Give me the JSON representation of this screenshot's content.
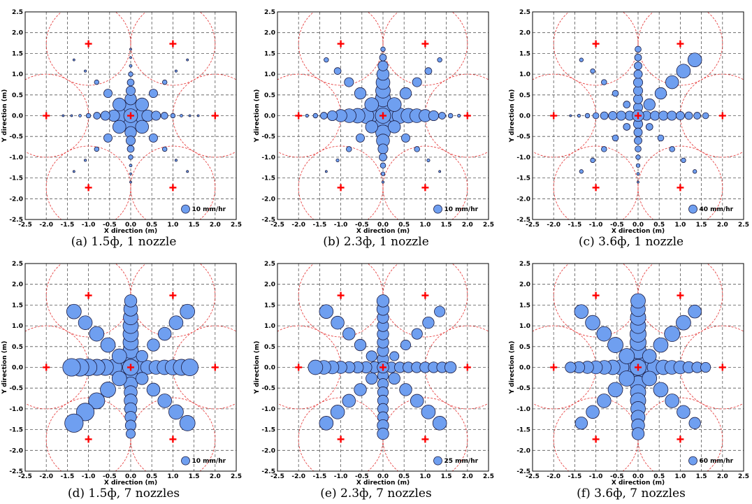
{
  "colors": {
    "bubble_fill": "#6f9ff0",
    "bubble_stroke": "#1a1a40",
    "nozzle_marker": "#ff0000",
    "coverage_circle": "#e43030",
    "grid": "#555555"
  },
  "icons": {
    "nozzle_marker": "red-plus-marker"
  },
  "chart_data": [
    {
      "type": "scatter",
      "caption": "(a) 1.5ф, 1 nozzle",
      "xlabel": "X direction (m)",
      "ylabel": "Y direction (m)",
      "xlim": [
        -2.5,
        2.5
      ],
      "ylim": [
        -2.5,
        2.5
      ],
      "ticks": [
        "-2.5",
        "-2.0",
        "-1.5",
        "-1.0",
        "-0.5",
        "0.0",
        "0.5",
        "1.0",
        "1.5",
        "2.0",
        "2.5"
      ],
      "grid": true,
      "legend": {
        "label": "10 mm/hr",
        "position": "bottom-right"
      },
      "arms": {
        "east": [
          0.9,
          0.75,
          0.6,
          0.45,
          0.3,
          0.18,
          0.1,
          0.06
        ],
        "west": [
          0.9,
          0.75,
          0.6,
          0.45,
          0.3,
          0.18,
          0.1,
          0.06
        ],
        "north": [
          0.9,
          0.75,
          0.6,
          0.45,
          0.3,
          0.18,
          0.1,
          0.06
        ],
        "south": [
          0.9,
          0.75,
          0.6,
          0.45,
          0.3,
          0.18,
          0.1,
          0.06
        ],
        "ne": [
          0.85,
          0.55,
          0.3,
          0.15,
          0.08
        ],
        "nw": [
          0.85,
          0.55,
          0.3,
          0.15,
          0.08
        ],
        "se": [
          0.85,
          0.55,
          0.3,
          0.15,
          0.08
        ],
        "sw": [
          0.85,
          0.55,
          0.3,
          0.15,
          0.08
        ]
      }
    },
    {
      "type": "scatter",
      "caption": "(b) 2.3ф, 1 nozzle",
      "xlabel": "X direction (m)",
      "ylabel": "Y direction (m)",
      "xlim": [
        -2.5,
        2.5
      ],
      "ylim": [
        -2.5,
        2.5
      ],
      "ticks": [
        "-2.5",
        "-2.0",
        "-1.5",
        "-1.0",
        "-0.5",
        "0.0",
        "0.5",
        "1.0",
        "1.5",
        "2.0",
        "2.5"
      ],
      "grid": true,
      "legend": {
        "label": "10 mm/hr",
        "position": "bottom-right"
      },
      "arms": {
        "east": [
          1.0,
          1.0,
          0.95,
          0.9,
          0.8,
          0.65,
          0.45,
          0.3,
          0.2,
          0.12
        ],
        "west": [
          1.0,
          1.0,
          0.95,
          0.9,
          0.8,
          0.65,
          0.45,
          0.3,
          0.2,
          0.12
        ],
        "north": [
          1.0,
          1.0,
          0.95,
          0.9,
          0.8,
          0.65,
          0.45,
          0.3
        ],
        "south": [
          1.0,
          0.95,
          0.85,
          0.65,
          0.5,
          0.35,
          0.25,
          0.15
        ],
        "ne": [
          0.9,
          0.75,
          0.6,
          0.45,
          0.3
        ],
        "nw": [
          0.9,
          0.75,
          0.6,
          0.45,
          0.3
        ],
        "se": [
          0.8,
          0.55,
          0.35,
          0.2,
          0.1
        ],
        "sw": [
          0.8,
          0.55,
          0.35,
          0.2,
          0.1
        ]
      }
    },
    {
      "type": "scatter",
      "caption": "(c) 3.6ф, 1 nozzle",
      "xlabel": "X direction (m)",
      "ylabel": "Y direction (m)",
      "xlim": [
        -2.5,
        2.5
      ],
      "ylim": [
        -2.5,
        2.5
      ],
      "ticks": [
        "-2.5",
        "-2.0",
        "-1.5",
        "-1.0",
        "-0.5",
        "0.0",
        "0.5",
        "1.0",
        "1.5",
        "2.0",
        "2.5"
      ],
      "grid": true,
      "legend": {
        "label": "40 mm/hr",
        "position": "bottom-right"
      },
      "arms": {
        "east": [
          0.6,
          0.6,
          0.6,
          0.6,
          0.55,
          0.5,
          0.45,
          0.4
        ],
        "west": [
          0.6,
          0.6,
          0.55,
          0.5,
          0.4,
          0.3,
          0.2,
          0.12
        ],
        "north": [
          0.6,
          0.6,
          0.6,
          0.6,
          0.55,
          0.5,
          0.45,
          0.4
        ],
        "south": [
          0.6,
          0.55,
          0.5,
          0.4,
          0.3,
          0.25,
          0.18,
          0.12
        ],
        "ne": [
          0.75,
          0.75,
          0.85,
          0.9,
          0.9
        ],
        "nw": [
          0.45,
          0.4,
          0.35,
          0.3,
          0.25
        ],
        "se": [
          0.45,
          0.4,
          0.35,
          0.3,
          0.25
        ],
        "sw": [
          0.45,
          0.4,
          0.35,
          0.3,
          0.25
        ]
      }
    },
    {
      "type": "scatter",
      "caption": "(d) 1.5ф, 7 nozzles",
      "xlabel": "X direction (m)",
      "ylabel": "Y direction (m)",
      "xlim": [
        -2.5,
        2.5
      ],
      "ylim": [
        -2.5,
        2.5
      ],
      "ticks": [
        "-2.5",
        "-2.0",
        "-1.5",
        "-1.0",
        "-0.5",
        "0.0",
        "0.5",
        "1.0",
        "1.5",
        "2.0",
        "2.5"
      ],
      "grid": true,
      "legend": {
        "label": "10 mm/hr",
        "position": "bottom-right"
      },
      "arms": {
        "east": [
          0.9,
          0.9,
          0.9,
          0.95,
          1.0,
          1.05,
          1.1
        ],
        "west": [
          1.05,
          1.05,
          1.05,
          1.05,
          1.1,
          1.15,
          1.15
        ],
        "north": [
          1.0,
          1.0,
          1.0,
          1.0,
          1.0,
          0.95,
          0.9,
          0.8
        ],
        "south": [
          0.9,
          0.9,
          0.85,
          0.85,
          0.8,
          0.75,
          0.7,
          0.6
        ],
        "ne": [
          0.75,
          0.8,
          0.85,
          0.9,
          0.95
        ],
        "nw": [
          0.95,
          0.95,
          0.95,
          0.9,
          0.95
        ],
        "se": [
          0.8,
          0.85,
          0.9,
          0.95,
          1.0
        ],
        "sw": [
          0.95,
          1.0,
          1.05,
          1.15,
          1.2
        ]
      }
    },
    {
      "type": "scatter",
      "caption": "(e) 2.3ф, 7 nozzles",
      "xlabel": "X direction (m)",
      "ylabel": "Y direction (m)",
      "xlim": [
        -2.5,
        2.5
      ],
      "ylim": [
        -2.5,
        2.5
      ],
      "ticks": [
        "-2.5",
        "-2.0",
        "-1.5",
        "-1.0",
        "-0.5",
        "0.0",
        "0.5",
        "1.0",
        "1.5",
        "2.0",
        "2.5"
      ],
      "grid": true,
      "legend": {
        "label": "25 mm/hr",
        "position": "bottom-right"
      },
      "arms": {
        "east": [
          0.7,
          0.7,
          0.7,
          0.7,
          0.7,
          0.7,
          0.7,
          0.75
        ],
        "west": [
          0.75,
          0.75,
          0.75,
          0.75,
          0.8,
          0.85,
          0.9,
          0.95
        ],
        "north": [
          0.75,
          0.75,
          0.75,
          0.75,
          0.75,
          0.75,
          0.8,
          0.8
        ],
        "south": [
          0.7,
          0.7,
          0.7,
          0.7,
          0.7,
          0.7,
          0.75,
          0.75
        ],
        "ne": [
          0.6,
          0.65,
          0.7,
          0.75,
          0.7
        ],
        "nw": [
          0.7,
          0.75,
          0.8,
          0.85,
          0.9
        ],
        "se": [
          0.75,
          0.8,
          0.85,
          0.9,
          0.9
        ],
        "sw": [
          0.75,
          0.8,
          0.85,
          0.9,
          0.9
        ]
      }
    },
    {
      "type": "scatter",
      "caption": "(f) 3.6ф, 7 nozzles",
      "xlabel": "X direction (m)",
      "ylabel": "Y direction (m)",
      "xlim": [
        -2.5,
        2.5
      ],
      "ylim": [
        -2.5,
        2.5
      ],
      "ticks": [
        "-2.5",
        "-2.0",
        "-1.5",
        "-1.0",
        "-0.5",
        "0.0",
        "0.5",
        "1.0",
        "1.5",
        "2.0",
        "2.5"
      ],
      "grid": true,
      "legend": {
        "label": "60 mm/hr",
        "position": "bottom-right"
      },
      "arms": {
        "east": [
          1.0,
          1.0,
          0.95,
          0.9,
          0.85,
          0.75,
          0.7,
          0.65
        ],
        "west": [
          1.0,
          1.0,
          0.95,
          0.9,
          0.85,
          0.8,
          0.75,
          0.7
        ],
        "north": [
          1.05,
          1.05,
          1.05,
          1.05,
          1.0,
          1.0,
          0.95,
          0.95
        ],
        "south": [
          1.05,
          1.05,
          1.0,
          1.0,
          0.95,
          0.9,
          0.85,
          0.8
        ],
        "ne": [
          0.9,
          0.95,
          1.0,
          0.95,
          0.85
        ],
        "nw": [
          1.0,
          1.0,
          0.95,
          0.95,
          0.9
        ],
        "se": [
          0.95,
          0.95,
          0.9,
          0.85,
          0.75
        ],
        "sw": [
          1.0,
          0.95,
          0.9,
          0.85,
          0.8
        ]
      }
    }
  ]
}
